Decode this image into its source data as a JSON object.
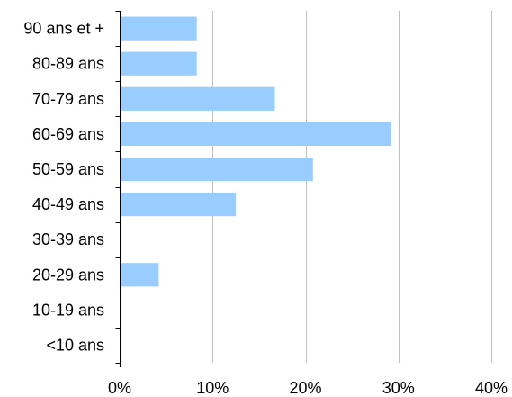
{
  "chart_data": {
    "type": "bar",
    "orientation": "horizontal",
    "categories": [
      "90 ans et +",
      "80-89 ans",
      "70-79 ans",
      "60-69 ans",
      "50-59 ans",
      "40-49 ans",
      "30-39 ans",
      "20-29 ans",
      "10-19 ans",
      "<10 ans"
    ],
    "values": [
      8.3,
      8.3,
      16.7,
      29.2,
      20.8,
      12.5,
      0,
      4.2,
      0,
      0
    ],
    "x_ticks": [
      "0%",
      "10%",
      "20%",
      "30%",
      "40%"
    ],
    "xlim": [
      0,
      40
    ],
    "title": "",
    "xlabel": "",
    "ylabel": "",
    "grid": "vertical",
    "legend": "none",
    "bar_color": "#99ccff",
    "grid_color": "#c0c0c0"
  }
}
